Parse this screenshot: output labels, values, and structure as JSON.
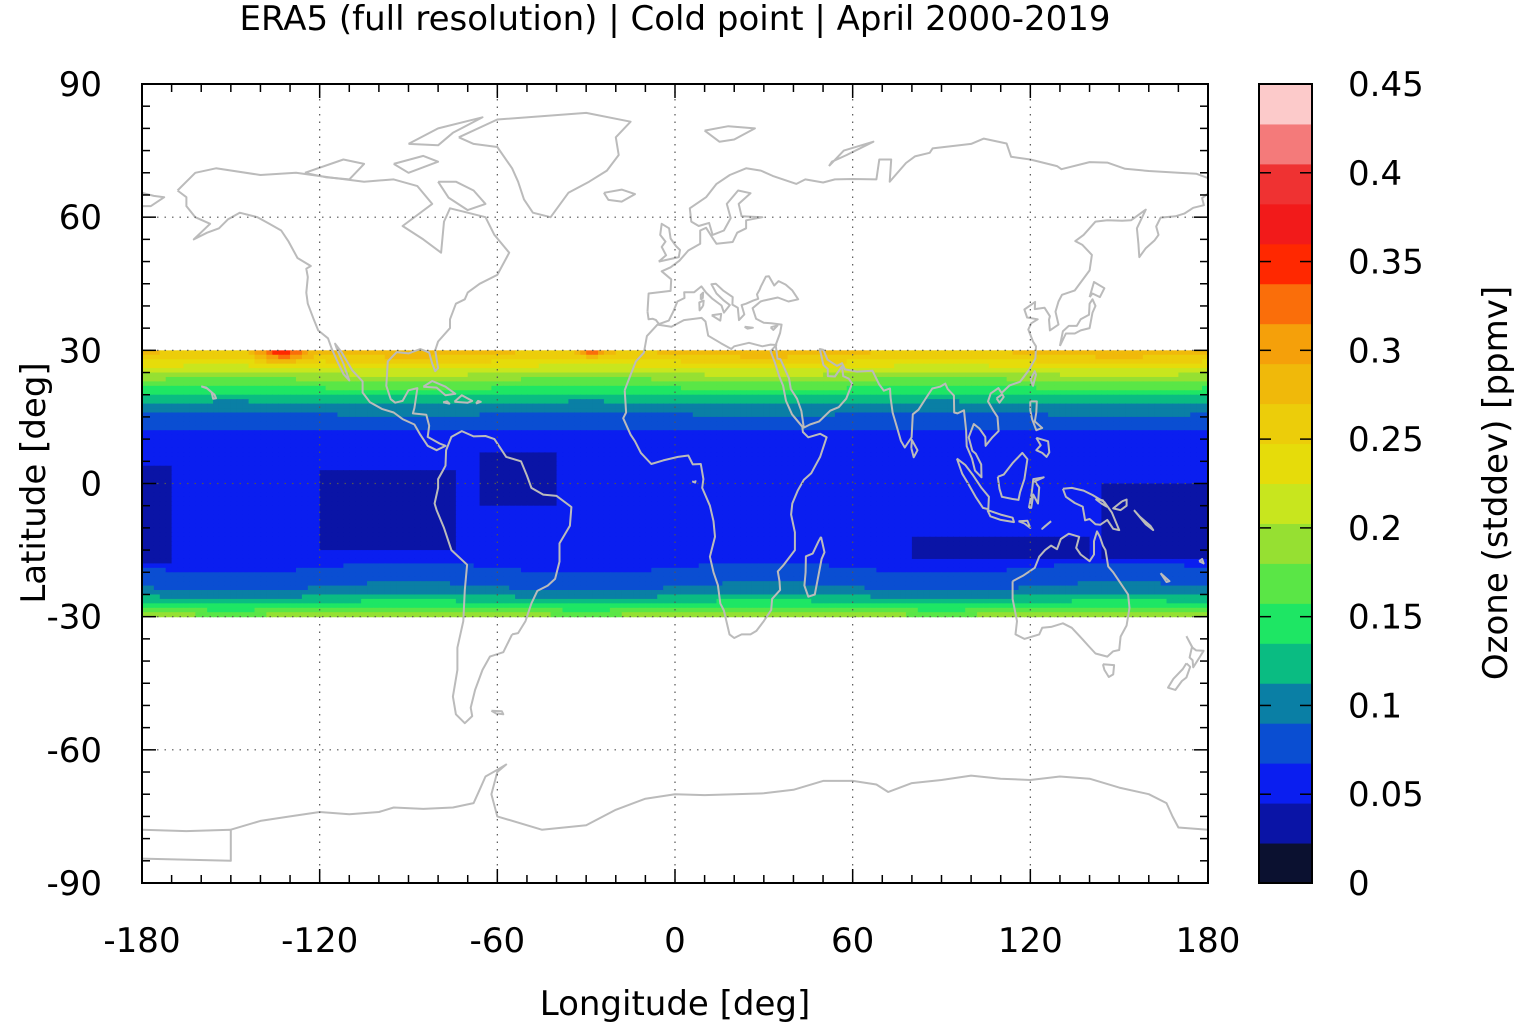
{
  "chart_data": {
    "type": "heatmap",
    "title": "ERA5 (full resolution) | Cold point | April 2000-2019",
    "xlabel": "Longitude [deg]",
    "ylabel": "Latitude [deg]",
    "colorbar_label": "Ozone (stddev) [ppmv]",
    "xlim": [
      -180,
      180
    ],
    "ylim": [
      -90,
      90
    ],
    "xticks": [
      "-180",
      "-120",
      "-60",
      "0",
      "60",
      "120",
      "180"
    ],
    "yticks": [
      "-90",
      "-60",
      "-30",
      "0",
      "30",
      "60",
      "90"
    ],
    "colorbar_ticks": [
      "0",
      "0.05",
      "0.1",
      "0.15",
      "0.2",
      "0.25",
      "0.3",
      "0.35",
      "0.4",
      "0.45"
    ],
    "colorbar_range": [
      0,
      0.45
    ],
    "grid": true,
    "data_lat_range": [
      -30,
      30
    ],
    "levels": [
      {
        "min": 0.0,
        "max": 0.0225,
        "color": "#0b1130"
      },
      {
        "min": 0.0225,
        "max": 0.045,
        "color": "#0a14a6"
      },
      {
        "min": 0.045,
        "max": 0.0675,
        "color": "#0a1ef0"
      },
      {
        "min": 0.0675,
        "max": 0.09,
        "color": "#0a4ed2"
      },
      {
        "min": 0.09,
        "max": 0.1125,
        "color": "#0a7fa5"
      },
      {
        "min": 0.1125,
        "max": 0.135,
        "color": "#0abc82"
      },
      {
        "min": 0.135,
        "max": 0.1575,
        "color": "#1ee664"
      },
      {
        "min": 0.1575,
        "max": 0.18,
        "color": "#5ae646"
      },
      {
        "min": 0.18,
        "max": 0.2025,
        "color": "#96e032"
      },
      {
        "min": 0.2025,
        "max": 0.225,
        "color": "#c8e61e"
      },
      {
        "min": 0.225,
        "max": 0.2475,
        "color": "#e6dc0a"
      },
      {
        "min": 0.2475,
        "max": 0.27,
        "color": "#eccd0a"
      },
      {
        "min": 0.27,
        "max": 0.2925,
        "color": "#f0b90a"
      },
      {
        "min": 0.2925,
        "max": 0.315,
        "color": "#f5a00a"
      },
      {
        "min": 0.315,
        "max": 0.3375,
        "color": "#fa6e0a"
      },
      {
        "min": 0.3375,
        "max": 0.36,
        "color": "#ff2800"
      },
      {
        "min": 0.36,
        "max": 0.3825,
        "color": "#f21a1a"
      },
      {
        "min": 0.3825,
        "max": 0.405,
        "color": "#ef3232"
      },
      {
        "min": 0.405,
        "max": 0.4275,
        "color": "#f47a7a"
      },
      {
        "min": 0.4275,
        "max": 0.45,
        "color": "#fccaca"
      }
    ],
    "lat_profile": [
      {
        "lat": 30,
        "value": 0.28
      },
      {
        "lat": 27,
        "value": 0.24
      },
      {
        "lat": 24,
        "value": 0.19
      },
      {
        "lat": 21,
        "value": 0.15
      },
      {
        "lat": 18,
        "value": 0.11
      },
      {
        "lat": 15,
        "value": 0.085
      },
      {
        "lat": 12,
        "value": 0.068
      },
      {
        "lat": 9,
        "value": 0.056
      },
      {
        "lat": 6,
        "value": 0.05
      },
      {
        "lat": 0,
        "value": 0.048
      },
      {
        "lat": -6,
        "value": 0.05
      },
      {
        "lat": -12,
        "value": 0.055
      },
      {
        "lat": -18,
        "value": 0.064
      },
      {
        "lat": -21,
        "value": 0.075
      },
      {
        "lat": -24,
        "value": 0.095
      },
      {
        "lat": -27,
        "value": 0.135
      },
      {
        "lat": -30,
        "value": 0.2
      }
    ],
    "minima_regions": [
      {
        "lon": [
          -120,
          -75
        ],
        "lat": [
          -15,
          3
        ]
      },
      {
        "lon": [
          -65,
          -40
        ],
        "lat": [
          -5,
          7
        ]
      },
      {
        "lon": [
          -180,
          -170
        ],
        "lat": [
          -18,
          4
        ]
      },
      {
        "lon": [
          145,
          180
        ],
        "lat": [
          -17,
          0
        ]
      },
      {
        "lon": [
          80,
          140
        ],
        "lat": [
          -17,
          -12
        ]
      }
    ],
    "maxima_regions": [
      {
        "lon": [
          -145,
          -120
        ],
        "lat": [
          26,
          30
        ],
        "value": 0.37
      },
      {
        "lon": [
          -35,
          -20
        ],
        "lat": [
          28,
          30
        ],
        "value": 0.36
      }
    ]
  }
}
